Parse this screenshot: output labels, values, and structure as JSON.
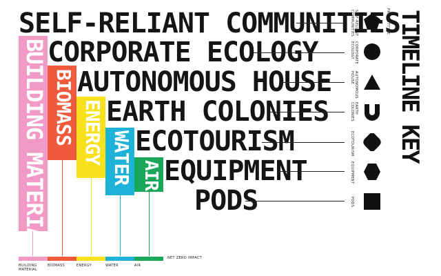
{
  "projects": [
    {
      "label": "SELF-RELIANT COMMUNITIES",
      "key_label": "SELF-RELIANT\nCOMMUNITIES",
      "shape": "pentagon-icon"
    },
    {
      "label": "CORPORATE ECOLOGY",
      "key_label": "CORPORATE\nECOLOGY",
      "shape": "circle-icon"
    },
    {
      "label": "AUTONOMOUS HOUSE",
      "key_label": "AUTONOMOUS\nHOUSE",
      "shape": "triangle-icon"
    },
    {
      "label": "EARTH COLONIES",
      "key_label": "EARTH\nCOLONIES",
      "shape": "u-shape-icon"
    },
    {
      "label": "ECOTOURISM",
      "key_label": "ECOTOURISM",
      "shape": "leaf-icon"
    },
    {
      "label": "EQUIPMENT",
      "key_label": "EQUIPMENT",
      "shape": "hexagon-icon"
    },
    {
      "label": "PODS",
      "key_label": "PODS",
      "shape": "square-icon"
    }
  ],
  "strips": [
    {
      "label": "BUILDING MATERIAL",
      "legend": "BUILDING\nMATERIAL",
      "color": "#f29ac6"
    },
    {
      "label": "BIOMASS",
      "legend": "BIOMASS",
      "color": "#ef5a3c"
    },
    {
      "label": "ENERGY",
      "legend": "ENERGY",
      "color": "#f7e01c"
    },
    {
      "label": "WATER",
      "legend": "WATER",
      "color": "#1fb2d8"
    },
    {
      "label": "AIR",
      "legend": "AIR",
      "color": "#19a85a"
    }
  ],
  "net_zero_label": "NET ZERO IMPACT",
  "key_header": "PROJECTTYPE",
  "timeline_title": "TIMELINE KEY"
}
